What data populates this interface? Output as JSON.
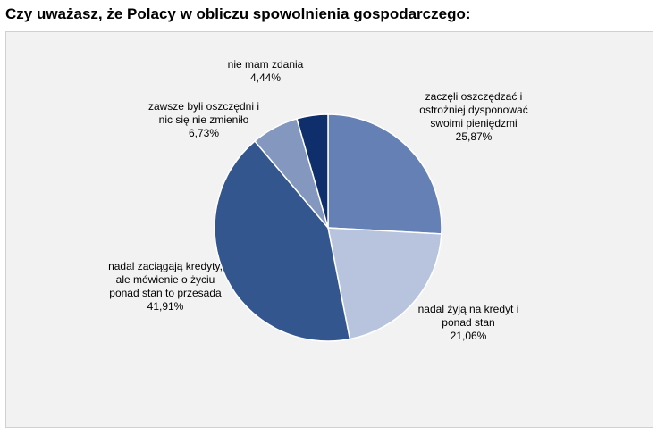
{
  "chart_data": {
    "type": "pie",
    "title": "Czy uważasz, że Polacy w obliczu spowolnienia gospodarczego:",
    "slices": [
      {
        "label": [
          "zaczęli oszczędzać i",
          "ostrożniej dysponować",
          "swoimi pieniędzmi"
        ],
        "value_label": "25,87%",
        "value": 25.87,
        "color": "#6580b4"
      },
      {
        "label": [
          "nadal żyją na kredyt i",
          "ponad stan"
        ],
        "value_label": "21,06%",
        "value": 21.06,
        "color": "#b8c4de"
      },
      {
        "label": [
          "nadal zaciągają kredyty,",
          "ale mówienie o życiu",
          "ponad stan to przesada"
        ],
        "value_label": "41,91%",
        "value": 41.91,
        "color": "#34568e"
      },
      {
        "label": [
          "zawsze byli oszczędni i",
          "nic się nie zmieniło"
        ],
        "value_label": "6,73%",
        "value": 6.73,
        "color": "#8397bf"
      },
      {
        "label": [
          "nie mam zdania"
        ],
        "value_label": "4,44%",
        "value": 4.44,
        "color": "#0e2f6b"
      }
    ]
  }
}
